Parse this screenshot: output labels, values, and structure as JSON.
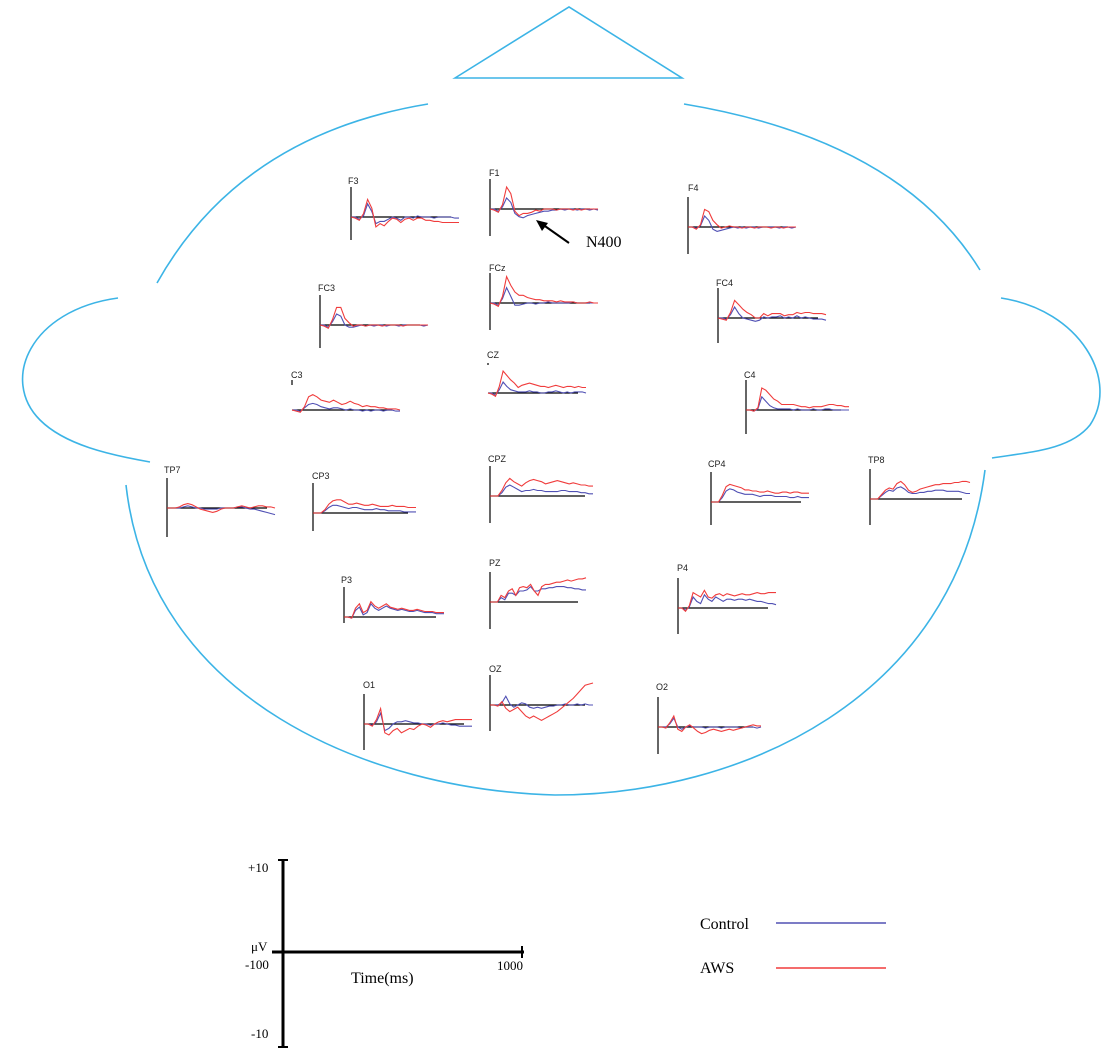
{
  "colors": {
    "head_outline": "#3cb4e6",
    "control": "#5050b4",
    "aws": "#f03c3c",
    "axis": "#000000"
  },
  "annotation": {
    "label": "N400"
  },
  "electrodes": [
    {
      "label": "F3",
      "shape": [
        0,
        -1,
        -3,
        3,
        16,
        8,
        -9,
        -6,
        -8,
        -4,
        -1,
        -2,
        -5,
        -2,
        -1,
        -3,
        -1,
        -1,
        -3,
        -3,
        -4,
        -4,
        -5,
        -5,
        -5,
        -5,
        -5
      ],
      "shape2": [
        0,
        0,
        -2,
        1,
        12,
        5,
        -6,
        -4,
        -4,
        -2,
        0,
        -1,
        -3,
        0,
        0,
        -1,
        1,
        0,
        0,
        0,
        -1,
        0,
        0,
        0,
        0,
        -1,
        -1
      ]
    },
    {
      "label": "F1",
      "shape": [
        0,
        -1,
        -3,
        4,
        20,
        14,
        -2,
        -6,
        -4,
        -4,
        -3,
        -1,
        -2,
        0,
        0,
        0,
        -1,
        0,
        0,
        0,
        -1,
        0,
        -1,
        0,
        0,
        0,
        0
      ],
      "shape2": [
        0,
        0,
        -2,
        2,
        10,
        6,
        -4,
        -7,
        -8,
        -6,
        -5,
        -4,
        -3,
        -2,
        -2,
        -1,
        -1,
        0,
        -1,
        0,
        0,
        -1,
        0,
        0,
        -1,
        0,
        -1
      ]
    },
    {
      "label": "F4",
      "shape": [
        0,
        0,
        -2,
        2,
        16,
        14,
        6,
        2,
        -1,
        0,
        1,
        0,
        0,
        -1,
        0,
        0,
        -1,
        0,
        0,
        0,
        -1,
        0,
        0,
        -1,
        0,
        0,
        0
      ],
      "shape2": [
        0,
        0,
        -1,
        1,
        10,
        6,
        -2,
        -4,
        -3,
        -2,
        -1,
        0,
        -1,
        0,
        -1,
        0,
        0,
        -1,
        0,
        0,
        0,
        0,
        -1,
        0,
        0,
        -1,
        0
      ]
    },
    {
      "label": "FC3",
      "shape": [
        0,
        -1,
        -3,
        5,
        16,
        16,
        6,
        2,
        -1,
        0,
        0,
        -1,
        0,
        0,
        0,
        -1,
        0,
        0,
        0,
        0,
        -1,
        0,
        0,
        0,
        0,
        0,
        0
      ],
      "shape2": [
        0,
        0,
        -2,
        3,
        10,
        8,
        0,
        -2,
        -2,
        -1,
        0,
        -1,
        0,
        -1,
        0,
        0,
        -1,
        0,
        0,
        -1,
        0,
        0,
        0,
        0,
        0,
        -1,
        0
      ]
    },
    {
      "label": "FCz",
      "shape": [
        0,
        -1,
        -3,
        6,
        24,
        16,
        10,
        7,
        7,
        5,
        4,
        3,
        3,
        2,
        2,
        2,
        1,
        2,
        1,
        1,
        1,
        0,
        0,
        0,
        1,
        0,
        0
      ],
      "shape2": [
        0,
        0,
        -2,
        4,
        14,
        6,
        -2,
        -2,
        -1,
        0,
        0,
        -1,
        0,
        0,
        1,
        0,
        0,
        0,
        0,
        0,
        1,
        0,
        0,
        0,
        0,
        0,
        0
      ]
    },
    {
      "label": "FC4",
      "shape": [
        0,
        -1,
        -2,
        5,
        16,
        12,
        8,
        5,
        3,
        0,
        0,
        4,
        2,
        4,
        4,
        4,
        2,
        3,
        3,
        5,
        4,
        5,
        5,
        4,
        4,
        4,
        3
      ],
      "shape2": [
        0,
        0,
        -1,
        3,
        10,
        4,
        0,
        -1,
        -2,
        -3,
        -2,
        1,
        0,
        1,
        1,
        2,
        0,
        1,
        0,
        2,
        0,
        1,
        0,
        -1,
        -1,
        -1,
        -2
      ]
    },
    {
      "label": "CZ",
      "shape": [
        0,
        -1,
        -3,
        6,
        20,
        16,
        12,
        9,
        5,
        7,
        8,
        9,
        8,
        7,
        6,
        6,
        5,
        6,
        7,
        6,
        5,
        6,
        6,
        5,
        6,
        5,
        5
      ],
      "shape2": [
        0,
        0,
        -2,
        3,
        10,
        6,
        3,
        2,
        1,
        1,
        1,
        2,
        1,
        1,
        0,
        0,
        1,
        1,
        2,
        1,
        0,
        1,
        0,
        1,
        1,
        1,
        0
      ]
    },
    {
      "label": "C3",
      "shape": [
        0,
        -1,
        -2,
        3,
        12,
        14,
        12,
        9,
        8,
        7,
        9,
        7,
        5,
        6,
        8,
        6,
        5,
        3,
        4,
        3,
        3,
        2,
        2,
        1,
        1,
        1,
        0
      ],
      "shape2": [
        0,
        0,
        -1,
        2,
        5,
        6,
        5,
        3,
        2,
        1,
        2,
        2,
        1,
        0,
        1,
        0,
        0,
        -1,
        0,
        -1,
        0,
        0,
        -1,
        0,
        0,
        -1,
        -1
      ]
    },
    {
      "label": "C4",
      "shape": [
        0,
        0,
        -1,
        2,
        20,
        18,
        14,
        10,
        8,
        5,
        5,
        5,
        5,
        4,
        3,
        3,
        2,
        3,
        3,
        3,
        4,
        5,
        5,
        4,
        4,
        3,
        3
      ],
      "shape2": [
        0,
        0,
        -1,
        1,
        12,
        8,
        4,
        2,
        1,
        1,
        1,
        1,
        0,
        1,
        0,
        0,
        0,
        1,
        0,
        0,
        1,
        1,
        0,
        0,
        0,
        0,
        0
      ]
    },
    {
      "label": "TP7",
      "shape": [
        0,
        0,
        0,
        1,
        3,
        4,
        3,
        1,
        -1,
        -2,
        -3,
        -4,
        -3,
        -1,
        0,
        0,
        0,
        1,
        2,
        1,
        0,
        1,
        2,
        2,
        1,
        1,
        0
      ],
      "shape2": [
        0,
        0,
        0,
        0,
        1,
        2,
        1,
        0,
        0,
        -1,
        -1,
        -1,
        -1,
        0,
        0,
        0,
        0,
        1,
        1,
        0,
        -1,
        -1,
        -2,
        -3,
        -4,
        -5,
        -6
      ]
    },
    {
      "label": "CP3",
      "shape": [
        0,
        0,
        0,
        3,
        8,
        11,
        12,
        12,
        10,
        8,
        8,
        9,
        8,
        7,
        7,
        8,
        7,
        6,
        6,
        6,
        7,
        6,
        6,
        6,
        5,
        5,
        5
      ],
      "shape2": [
        0,
        0,
        0,
        2,
        5,
        7,
        7,
        6,
        5,
        4,
        5,
        5,
        4,
        3,
        3,
        3,
        4,
        3,
        3,
        2,
        2,
        2,
        2,
        1,
        1,
        1,
        1
      ]
    },
    {
      "label": "CPZ",
      "shape": [
        0,
        0,
        0,
        5,
        12,
        16,
        13,
        11,
        9,
        12,
        14,
        15,
        14,
        13,
        11,
        12,
        13,
        14,
        13,
        12,
        11,
        12,
        11,
        10,
        10,
        9,
        9
      ],
      "shape2": [
        0,
        0,
        0,
        3,
        8,
        10,
        8,
        6,
        4,
        5,
        5,
        6,
        5,
        5,
        4,
        4,
        4,
        4,
        5,
        5,
        4,
        4,
        4,
        3,
        3,
        2,
        2
      ]
    },
    {
      "label": "CP4",
      "shape": [
        0,
        0,
        0,
        6,
        14,
        16,
        15,
        14,
        13,
        11,
        11,
        10,
        10,
        9,
        9,
        10,
        9,
        8,
        8,
        9,
        9,
        8,
        9,
        9,
        8,
        8,
        8
      ],
      "shape2": [
        0,
        0,
        0,
        4,
        10,
        12,
        11,
        9,
        8,
        7,
        7,
        7,
        6,
        5,
        6,
        6,
        6,
        5,
        5,
        5,
        5,
        4,
        4,
        5,
        4,
        4,
        4
      ]
    },
    {
      "label": "TP8",
      "shape": [
        0,
        0,
        0,
        4,
        8,
        10,
        9,
        14,
        16,
        13,
        8,
        6,
        7,
        9,
        10,
        11,
        12,
        13,
        13,
        14,
        14,
        14,
        15,
        15,
        16,
        16,
        15
      ],
      "shape2": [
        0,
        0,
        0,
        3,
        6,
        8,
        7,
        10,
        11,
        9,
        6,
        5,
        5,
        6,
        6,
        7,
        7,
        8,
        8,
        8,
        7,
        7,
        7,
        7,
        6,
        5,
        5
      ]
    },
    {
      "label": "P3",
      "shape": [
        0,
        0,
        -1,
        8,
        12,
        4,
        6,
        14,
        10,
        8,
        10,
        12,
        9,
        8,
        7,
        8,
        7,
        6,
        6,
        7,
        6,
        5,
        5,
        5,
        4,
        4,
        4
      ],
      "shape2": [
        0,
        0,
        -1,
        6,
        9,
        2,
        4,
        12,
        8,
        6,
        8,
        10,
        8,
        7,
        6,
        7,
        6,
        5,
        5,
        6,
        5,
        4,
        4,
        4,
        3,
        3,
        3
      ]
    },
    {
      "label": "PZ",
      "shape": [
        0,
        0,
        0,
        6,
        4,
        10,
        12,
        6,
        13,
        14,
        13,
        16,
        10,
        6,
        14,
        16,
        16,
        17,
        18,
        18,
        19,
        20,
        19,
        20,
        21,
        21,
        22
      ],
      "shape2": [
        0,
        0,
        0,
        4,
        2,
        8,
        8,
        6,
        10,
        10,
        11,
        14,
        10,
        10,
        12,
        12,
        13,
        13,
        14,
        14,
        14,
        13,
        13,
        12,
        12,
        11,
        11
      ]
    },
    {
      "label": "P4",
      "shape": [
        0,
        0,
        -3,
        2,
        14,
        12,
        10,
        16,
        10,
        9,
        12,
        13,
        11,
        13,
        12,
        11,
        12,
        13,
        12,
        12,
        13,
        14,
        13,
        13,
        14,
        14,
        14
      ],
      "shape2": [
        0,
        0,
        -2,
        1,
        10,
        6,
        4,
        12,
        8,
        6,
        10,
        8,
        6,
        8,
        8,
        7,
        8,
        8,
        7,
        8,
        7,
        6,
        6,
        5,
        4,
        4,
        3
      ]
    },
    {
      "label": "O1",
      "shape": [
        0,
        0,
        -2,
        4,
        14,
        -8,
        -10,
        -6,
        -4,
        -8,
        -6,
        -4,
        -5,
        -2,
        0,
        -1,
        -3,
        0,
        2,
        3,
        2,
        3,
        4,
        4,
        4,
        4,
        4
      ],
      "shape2": [
        0,
        0,
        -1,
        2,
        10,
        -6,
        -4,
        0,
        2,
        2,
        3,
        2,
        1,
        1,
        0,
        0,
        -1,
        0,
        0,
        1,
        0,
        -1,
        -1,
        -2,
        -2,
        -2,
        -2
      ]
    },
    {
      "label": "OZ",
      "shape": [
        0,
        0,
        -1,
        3,
        -3,
        -6,
        -4,
        -2,
        -6,
        -10,
        -12,
        -10,
        -12,
        -14,
        -12,
        -10,
        -8,
        -6,
        -3,
        0,
        3,
        6,
        10,
        14,
        18,
        19,
        20
      ],
      "shape2": [
        0,
        0,
        0,
        2,
        8,
        1,
        -2,
        0,
        2,
        1,
        -2,
        -3,
        -2,
        -3,
        -2,
        -1,
        -1,
        0,
        0,
        1,
        0,
        0,
        1,
        0,
        1,
        0,
        0
      ]
    },
    {
      "label": "O2",
      "shape": [
        0,
        0,
        -1,
        4,
        10,
        -2,
        -4,
        0,
        2,
        -1,
        -4,
        -6,
        -5,
        -3,
        -2,
        -3,
        -4,
        -3,
        -2,
        -3,
        -2,
        -1,
        0,
        1,
        2,
        1,
        1
      ],
      "shape2": [
        0,
        0,
        0,
        3,
        8,
        0,
        -2,
        0,
        1,
        0,
        0,
        0,
        -1,
        0,
        0,
        0,
        -1,
        0,
        0,
        0,
        0,
        -1,
        0,
        0,
        0,
        -1,
        0
      ]
    }
  ],
  "scale": {
    "y_top": "+10",
    "y_bottom": "-10",
    "y_unit": "μV",
    "x_start": "-100",
    "x_end": "1000",
    "x_label": "Time(ms)"
  },
  "legend": [
    {
      "name": "Control",
      "color": "#5050b4"
    },
    {
      "name": "AWS",
      "color": "#f03c3c"
    }
  ]
}
